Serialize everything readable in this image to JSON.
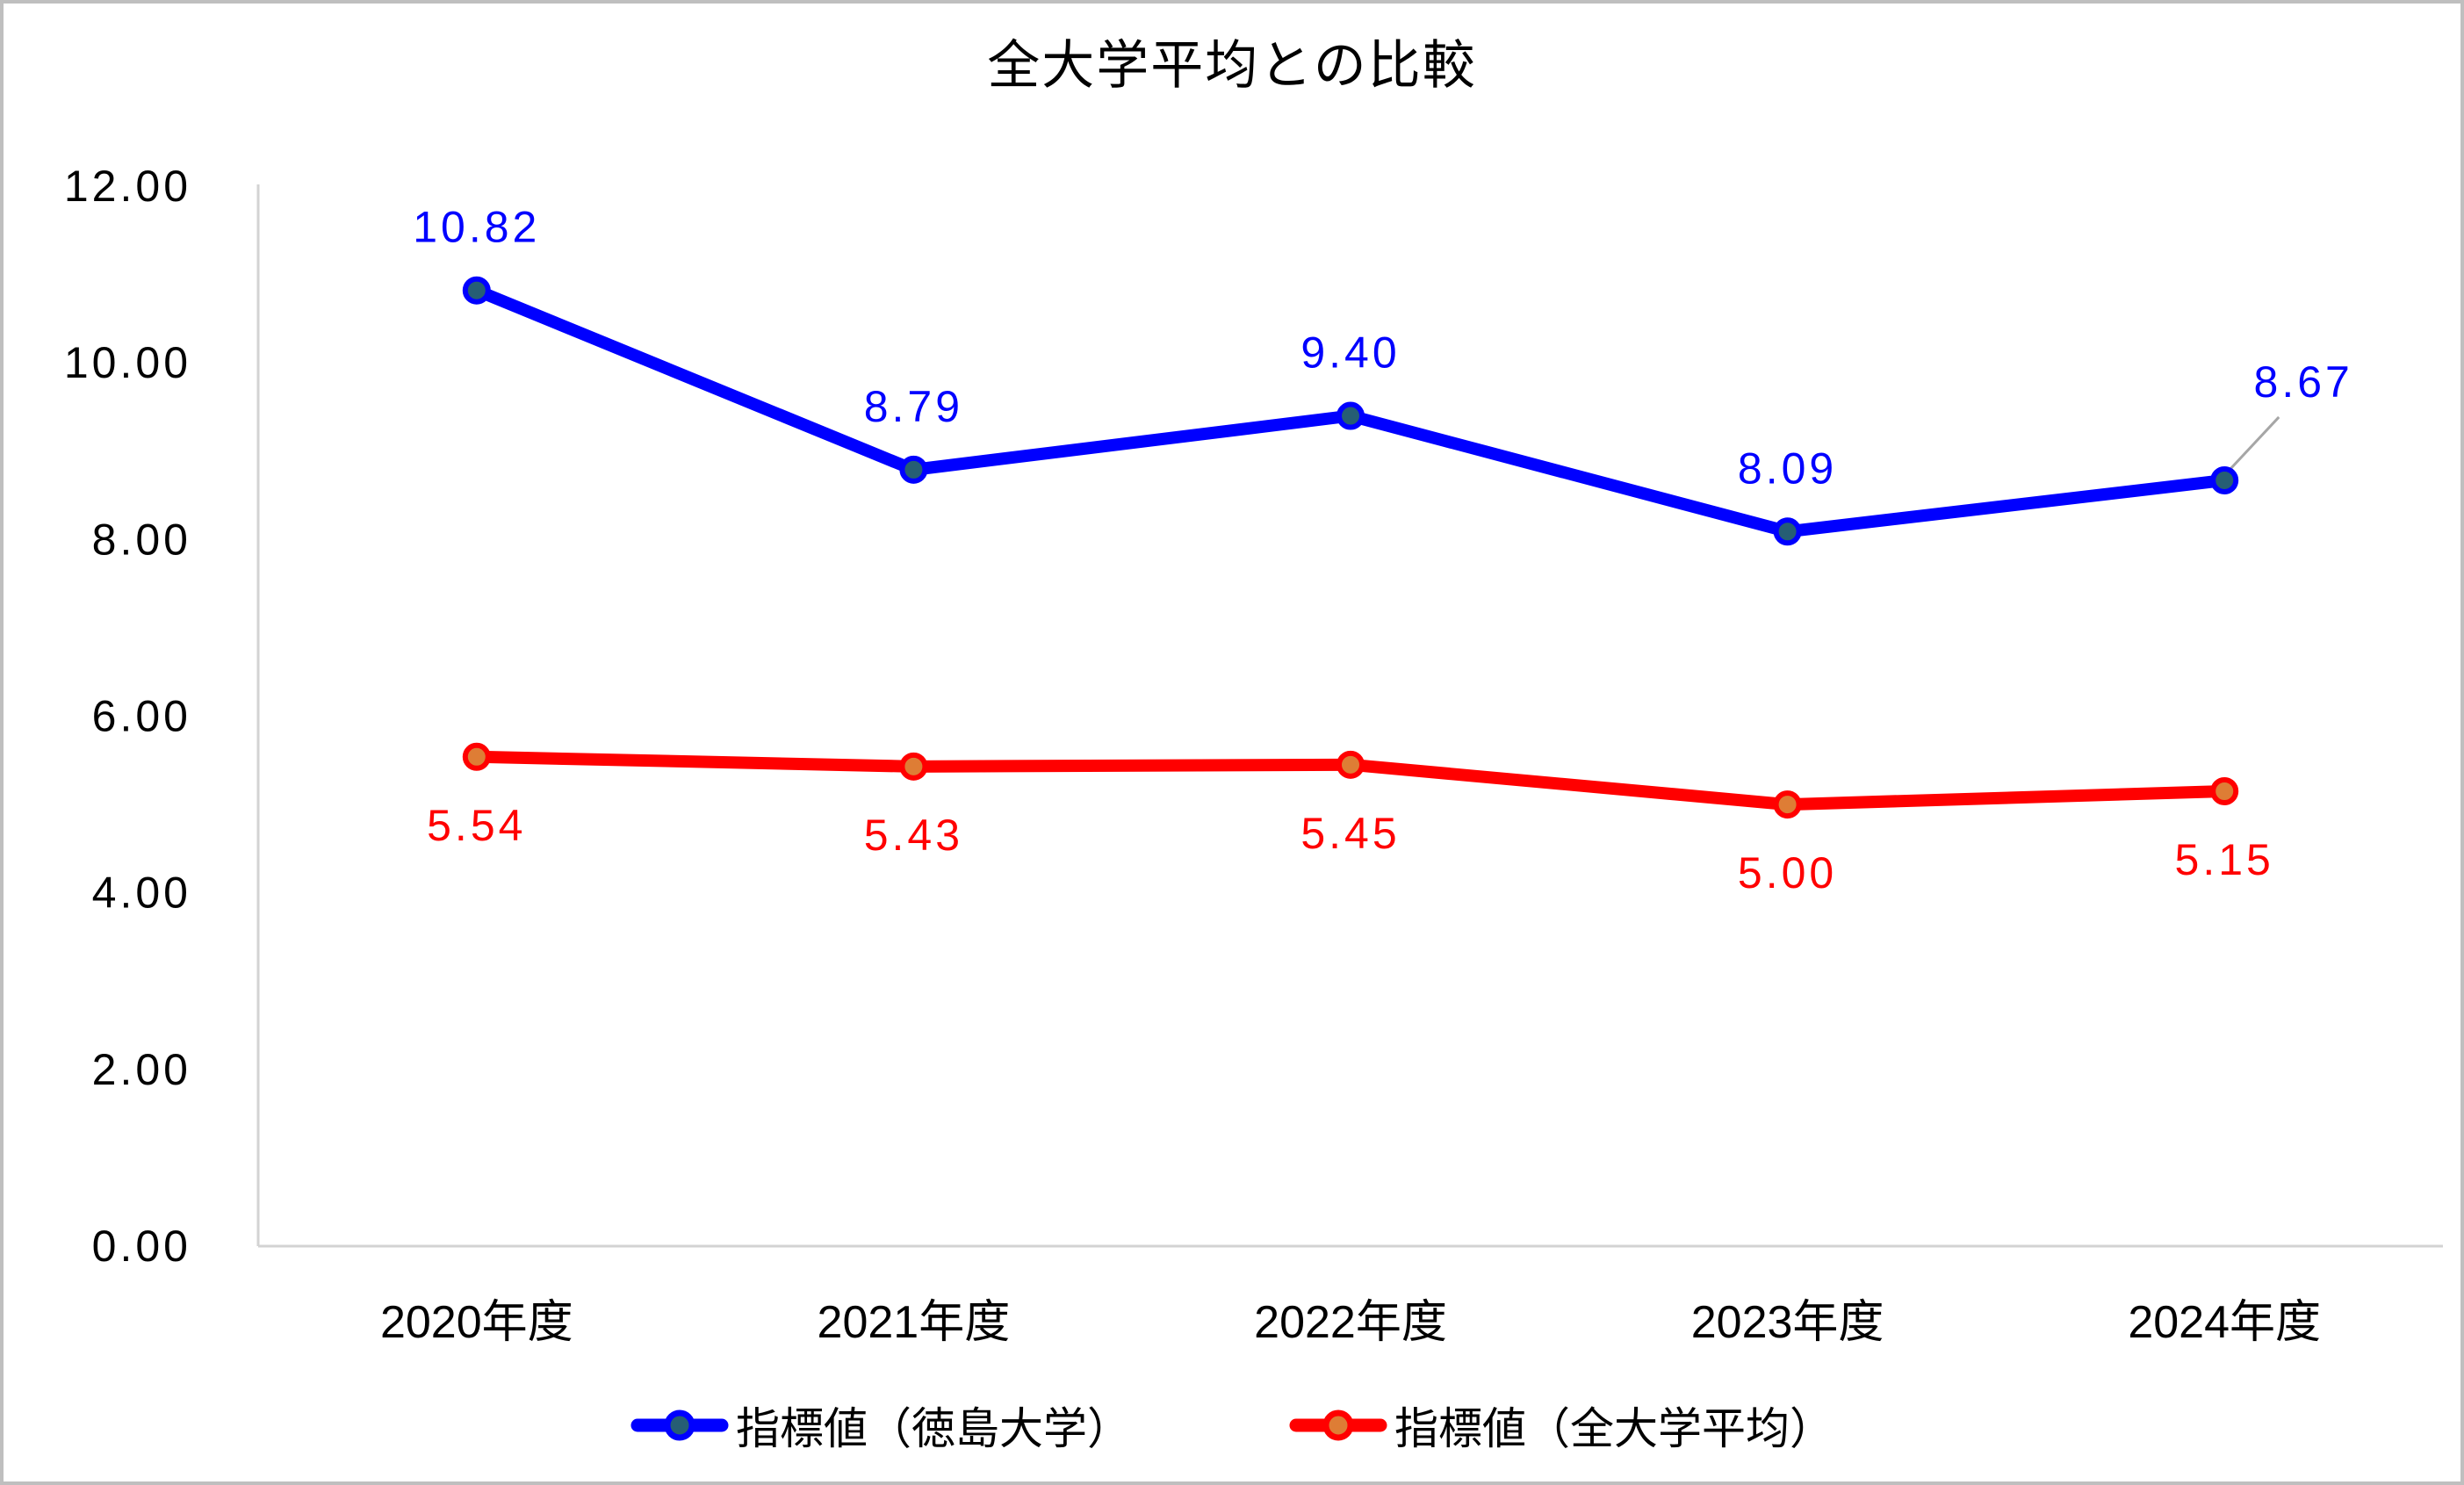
{
  "chart_data": {
    "type": "line",
    "title": "全大学平均との比較",
    "categories": [
      "2020年度",
      "2021年度",
      "2022年度",
      "2023年度",
      "2024年度"
    ],
    "series": [
      {
        "name": "指標値（徳島大学）",
        "values": [
          10.82,
          8.79,
          9.4,
          8.09,
          8.67
        ],
        "labels": [
          "10.82",
          "8.79",
          "9.40",
          "8.09",
          "8.67"
        ],
        "line_color": "#0000FF",
        "marker_fill": "#265E74",
        "label_color": "#0000FF",
        "label_position": "above"
      },
      {
        "name": "指標値（全大学平均）",
        "values": [
          5.54,
          5.43,
          5.45,
          5.0,
          5.15
        ],
        "labels": [
          "5.54",
          "5.43",
          "5.45",
          "5.00",
          "5.15"
        ],
        "line_color": "#FF0000",
        "marker_fill": "#DE7D35",
        "label_color": "#FF0000",
        "label_position": "below"
      }
    ],
    "y_ticks": [
      "0.00",
      "2.00",
      "4.00",
      "6.00",
      "8.00",
      "10.00",
      "12.00"
    ],
    "ylim": [
      0,
      12
    ],
    "xlabel": "",
    "ylabel": "",
    "grid": false,
    "legend_position": "bottom",
    "colors": {
      "axis_line": "#D3D3D3",
      "outer_border": "#BFBFBF",
      "leader_line": "#A6A6A6",
      "background": "#FFFFFF",
      "title_text": "#000000"
    }
  }
}
